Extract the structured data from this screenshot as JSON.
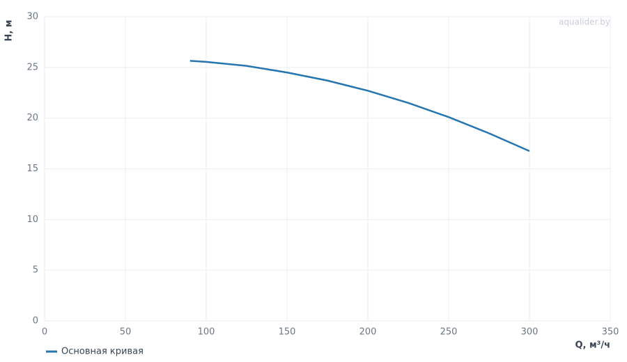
{
  "chart_data": {
    "type": "line",
    "watermark": "aqualider.by",
    "xlabel": "Q, м³/ч",
    "ylabel": "H, м",
    "x": [
      90,
      100,
      125,
      150,
      175,
      200,
      225,
      250,
      275,
      300
    ],
    "series": [
      {
        "name": "Основная кривая",
        "color": "#2475b0",
        "values": [
          25.65,
          25.55,
          25.15,
          24.5,
          23.7,
          22.7,
          21.5,
          20.1,
          18.5,
          16.75
        ]
      }
    ],
    "xlim": [
      0,
      350
    ],
    "xticks": [
      0,
      50,
      100,
      150,
      200,
      250,
      300,
      350
    ],
    "ylim": [
      0,
      30
    ],
    "yticks": [
      0,
      5,
      10,
      15,
      20,
      25,
      30
    ],
    "grid": true,
    "legend": "bottom-left"
  }
}
